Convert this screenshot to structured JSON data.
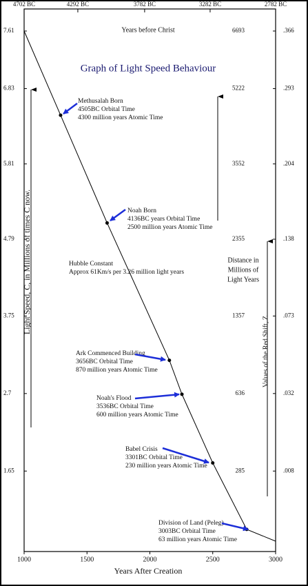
{
  "chart_data": {
    "type": "line",
    "title": "Graph of Light Speed Behaviour",
    "x_label": "Years After Creation",
    "x2_label": "Years before Christ",
    "y_label": "Light Speed, C, in Millions of times C now.",
    "y2_label": "Values of the Red Shift, Z",
    "y3_label": [
      "Distance in",
      "Millions of",
      "Light Years"
    ],
    "x": [
      1000,
      1290,
      1660,
      2155,
      2255,
      2500,
      2770,
      3000
    ],
    "values": [
      7.61,
      6.47,
      5.01,
      3.15,
      2.69,
      1.76,
      0.86,
      0.7
    ],
    "color": "#000000",
    "xlim": [
      1000,
      3000
    ],
    "xticks": [
      1000,
      1500,
      2000,
      2500,
      3000
    ],
    "x2lim": [
      4702,
      2782
    ],
    "x2ticks": [
      {
        "value": 4702,
        "label": "4702 BC"
      },
      {
        "value": 4292,
        "label": "4292 BC"
      },
      {
        "value": 3782,
        "label": "3782 BC"
      },
      {
        "value": 3282,
        "label": "3282 BC"
      },
      {
        "value": 2782,
        "label": "2782 BC"
      }
    ],
    "ylim": [
      0.7,
      7.61
    ],
    "yticks": [
      7.61,
      6.83,
      5.81,
      4.79,
      3.75,
      2.7,
      1.65
    ],
    "y2ticks": [
      {
        "value": 0.366,
        "label": ".366"
      },
      {
        "value": 0.293,
        "label": ".293"
      },
      {
        "value": 0.204,
        "label": ".204"
      },
      {
        "value": 0.138,
        "label": ".138"
      },
      {
        "value": 0.073,
        "label": ".073"
      },
      {
        "value": 0.032,
        "label": ".032"
      },
      {
        "value": 0.008,
        "label": ".008"
      }
    ],
    "y3ticks": [
      6693,
      5222,
      3552,
      2355,
      1357,
      636,
      285
    ],
    "annotations": [
      {
        "lines": [
          "Methusalah Born",
          "4505BC Orbital Time",
          "4300 million years Atomic Time"
        ]
      },
      {
        "lines": [
          "Noah Born",
          "4136BC years Orbital Time",
          "2500 million years Atomic Time"
        ]
      },
      {
        "lines": [
          "Hubble Constant",
          "Approx 61Km/s per 3.26 million light years"
        ]
      },
      {
        "lines": [
          "Ark Commenced Building",
          "3656BC Orbital Time",
          "870 million years Atomic Time"
        ]
      },
      {
        "lines": [
          "Noah's Flood",
          "3536BC Orbital Time",
          "600 million years Atomic Time"
        ]
      },
      {
        "lines": [
          "Babel Crisis",
          "3301BC Orbital Time",
          "230 million years Atomic Time"
        ]
      },
      {
        "lines": [
          "Division of Land (Peleg)",
          "3003BC Orbital Time",
          "63 million years Atomic Time"
        ]
      }
    ],
    "arrow_color": "#1c2ed8"
  }
}
